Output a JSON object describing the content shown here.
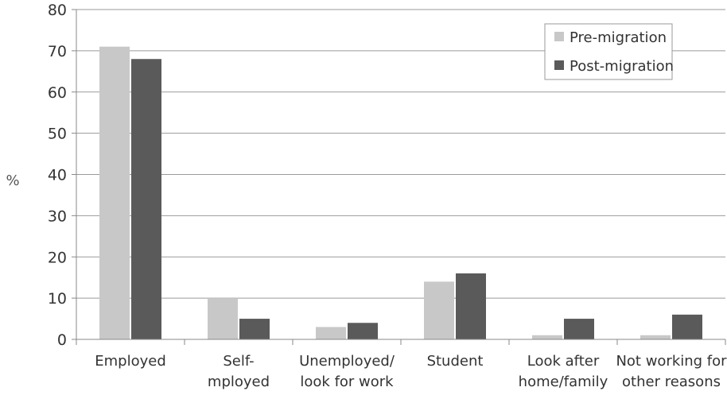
{
  "chart_data": {
    "type": "bar",
    "ylabel": "%",
    "ylim": [
      0,
      80
    ],
    "yticks": [
      0,
      10,
      20,
      30,
      40,
      50,
      60,
      70,
      80
    ],
    "grid": true,
    "legend_position": "top-right",
    "categories": [
      [
        "Employed"
      ],
      [
        "Self-",
        "mployed"
      ],
      [
        "Unemployed/",
        "look for work"
      ],
      [
        "Student"
      ],
      [
        "Look after",
        "home/family"
      ],
      [
        "Not working for",
        "other reasons"
      ]
    ],
    "series": [
      {
        "name": "Pre-migration",
        "color": "#c8c8c8",
        "values": [
          71,
          10,
          3,
          14,
          1,
          1
        ]
      },
      {
        "name": "Post-migration",
        "color": "#5a5a5a",
        "values": [
          68,
          5,
          4,
          16,
          5,
          6
        ]
      }
    ]
  }
}
